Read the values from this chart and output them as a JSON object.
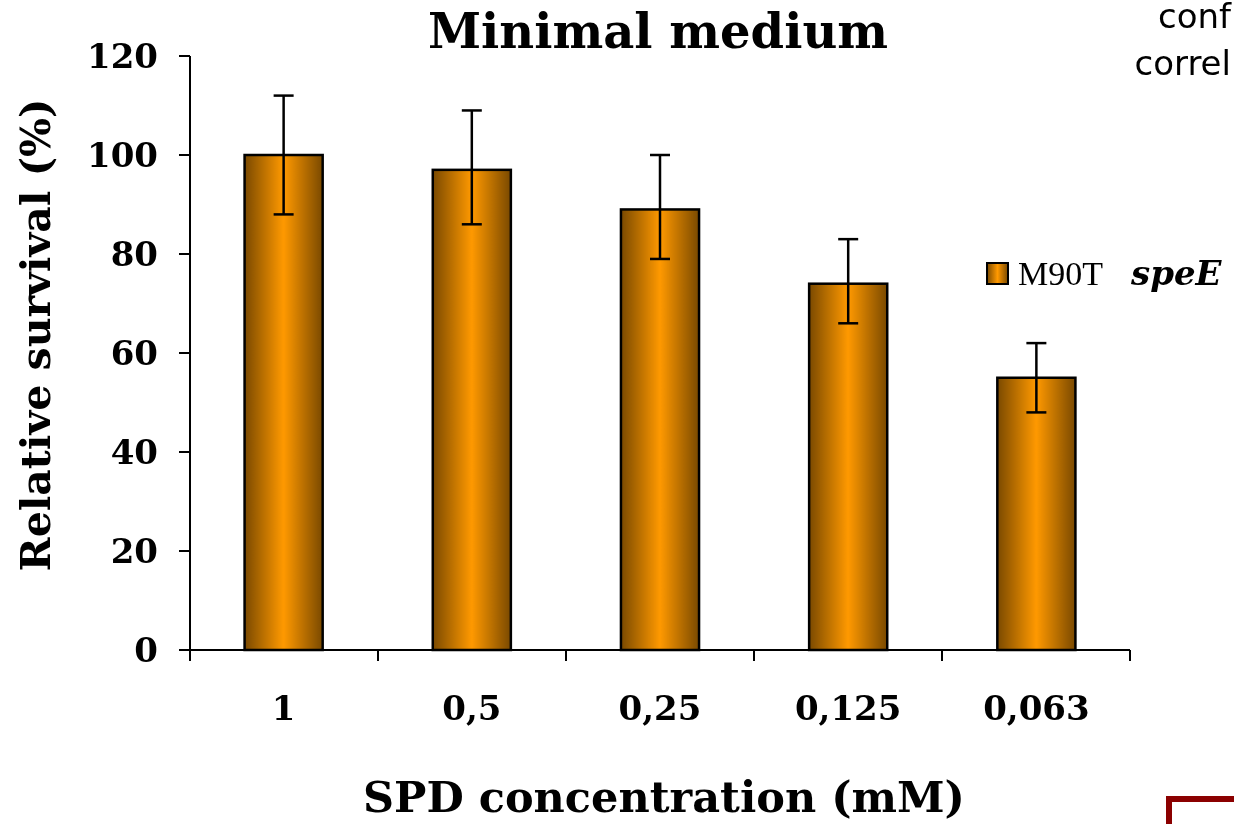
{
  "chart_data": {
    "type": "bar",
    "title": "Minimal medium",
    "xlabel": "SPD concentration (mM)",
    "ylabel": "Relative survival (%)",
    "categories": [
      "1",
      "0,5",
      "0,25",
      "0,125",
      "0,063"
    ],
    "series": [
      {
        "name": "M90T speE",
        "color": "#ff9900",
        "values": [
          100,
          97,
          89,
          74,
          55
        ],
        "errors": [
          [
            88,
            112
          ],
          [
            86,
            109
          ],
          [
            79,
            100
          ],
          [
            66,
            83
          ],
          [
            48,
            62
          ]
        ]
      }
    ],
    "ylim": [
      0,
      120
    ],
    "yticks": [
      0,
      20,
      40,
      60,
      80,
      100,
      120
    ],
    "grid": false,
    "legend": "right",
    "annotations": [
      "conf",
      "correl"
    ]
  }
}
